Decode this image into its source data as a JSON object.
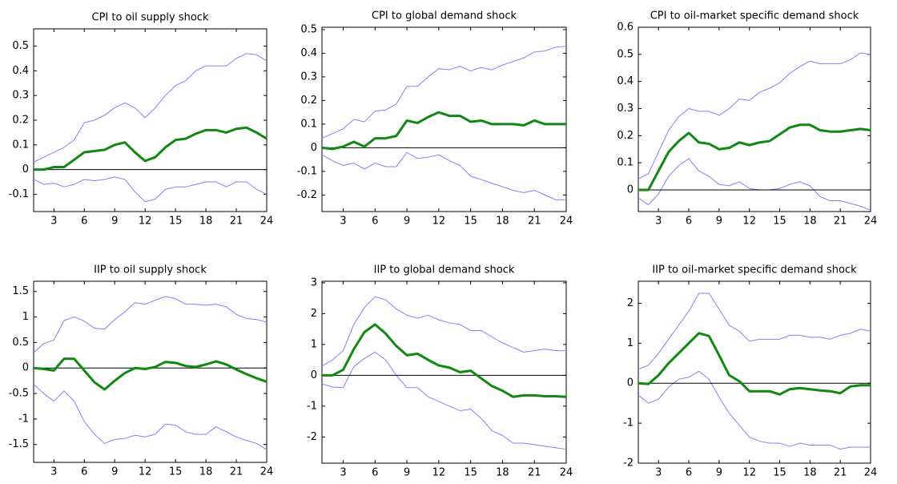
{
  "chart_data": [
    {
      "type": "line",
      "title": "CPI to oil supply shock",
      "x": [
        1,
        2,
        3,
        4,
        5,
        6,
        7,
        8,
        9,
        10,
        11,
        12,
        13,
        14,
        15,
        16,
        17,
        18,
        19,
        20,
        21,
        22,
        23,
        24
      ],
      "xlim": [
        1,
        24
      ],
      "xticks": [
        3,
        6,
        9,
        12,
        15,
        18,
        21,
        24
      ],
      "ylim": [
        -0.17,
        0.57
      ],
      "yticks": [
        -0.1,
        0,
        0.1,
        0.2,
        0.3,
        0.4,
        0.5
      ],
      "zero_line": true,
      "series": [
        {
          "color": "#8080ff",
          "values": [
            0.03,
            0.05,
            0.07,
            0.09,
            0.12,
            0.19,
            0.2,
            0.22,
            0.25,
            0.27,
            0.25,
            0.21,
            0.25,
            0.3,
            0.34,
            0.36,
            0.4,
            0.42,
            0.42,
            0.42,
            0.45,
            0.47,
            0.465,
            0.44
          ]
        },
        {
          "color": "#8080ff",
          "values": [
            -0.04,
            -0.06,
            -0.055,
            -0.07,
            -0.06,
            -0.04,
            -0.045,
            -0.04,
            -0.03,
            -0.04,
            -0.09,
            -0.13,
            -0.12,
            -0.08,
            -0.07,
            -0.07,
            -0.06,
            -0.05,
            -0.05,
            -0.07,
            -0.05,
            -0.05,
            -0.08,
            -0.1
          ]
        },
        {
          "color": "#118811",
          "values": [
            0,
            0,
            0.01,
            0.01,
            0.04,
            0.07,
            0.075,
            0.08,
            0.1,
            0.11,
            0.07,
            0.035,
            0.05,
            0.09,
            0.12,
            0.125,
            0.145,
            0.16,
            0.16,
            0.15,
            0.165,
            0.17,
            0.15,
            0.125
          ]
        }
      ]
    },
    {
      "type": "line",
      "title": "CPI to global demand shock",
      "x": [
        1,
        2,
        3,
        4,
        5,
        6,
        7,
        8,
        9,
        10,
        11,
        12,
        13,
        14,
        15,
        16,
        17,
        18,
        19,
        20,
        21,
        22,
        23,
        24
      ],
      "xlim": [
        1,
        24
      ],
      "xticks": [
        3,
        6,
        9,
        12,
        15,
        18,
        21,
        24
      ],
      "ylim": [
        -0.27,
        0.51
      ],
      "yticks": [
        -0.2,
        -0.1,
        0,
        0.1,
        0.2,
        0.3,
        0.4,
        0.5
      ],
      "zero_line": true,
      "series": [
        {
          "color": "#8080ff",
          "values": [
            0.04,
            0.06,
            0.08,
            0.12,
            0.11,
            0.155,
            0.16,
            0.185,
            0.26,
            0.26,
            0.3,
            0.335,
            0.33,
            0.345,
            0.325,
            0.34,
            0.33,
            0.35,
            0.365,
            0.38,
            0.405,
            0.41,
            0.425,
            0.43
          ]
        },
        {
          "color": "#8080ff",
          "values": [
            -0.03,
            -0.055,
            -0.075,
            -0.065,
            -0.09,
            -0.065,
            -0.08,
            -0.08,
            -0.02,
            -0.045,
            -0.04,
            -0.03,
            -0.055,
            -0.075,
            -0.12,
            -0.135,
            -0.15,
            -0.165,
            -0.18,
            -0.19,
            -0.18,
            -0.2,
            -0.22,
            -0.22
          ]
        },
        {
          "color": "#118811",
          "values": [
            0,
            -0.005,
            0.005,
            0.025,
            0.005,
            0.04,
            0.04,
            0.05,
            0.115,
            0.105,
            0.13,
            0.15,
            0.135,
            0.135,
            0.11,
            0.115,
            0.1,
            0.1,
            0.1,
            0.095,
            0.115,
            0.1,
            0.1,
            0.1
          ]
        }
      ]
    },
    {
      "type": "line",
      "title": "CPI to oil-market specific demand shock",
      "x": [
        1,
        2,
        3,
        4,
        5,
        6,
        7,
        8,
        9,
        10,
        11,
        12,
        13,
        14,
        15,
        16,
        17,
        18,
        19,
        20,
        21,
        22,
        23,
        24
      ],
      "xlim": [
        1,
        24
      ],
      "xticks": [
        3,
        6,
        9,
        12,
        15,
        18,
        21,
        24
      ],
      "ylim": [
        -0.08,
        0.6
      ],
      "yticks": [
        0,
        0.1,
        0.2,
        0.3,
        0.4,
        0.5,
        0.6
      ],
      "zero_line": true,
      "series": [
        {
          "color": "#8080ff",
          "values": [
            0.04,
            0.06,
            0.14,
            0.22,
            0.27,
            0.3,
            0.29,
            0.29,
            0.275,
            0.3,
            0.335,
            0.33,
            0.36,
            0.375,
            0.395,
            0.43,
            0.455,
            0.475,
            0.465,
            0.465,
            0.465,
            0.48,
            0.505,
            0.5
          ]
        },
        {
          "color": "#8080ff",
          "values": [
            -0.03,
            -0.055,
            -0.015,
            0.05,
            0.09,
            0.115,
            0.07,
            0.05,
            0.02,
            0.015,
            0.03,
            0.005,
            0,
            0,
            0.005,
            0.02,
            0.03,
            0.015,
            -0.025,
            -0.04,
            -0.04,
            -0.05,
            -0.06,
            -0.075
          ]
        },
        {
          "color": "#118811",
          "values": [
            0,
            0,
            0.07,
            0.14,
            0.18,
            0.21,
            0.175,
            0.17,
            0.15,
            0.155,
            0.175,
            0.165,
            0.175,
            0.18,
            0.205,
            0.23,
            0.24,
            0.24,
            0.22,
            0.215,
            0.215,
            0.22,
            0.225,
            0.22
          ]
        }
      ]
    },
    {
      "type": "line",
      "title": "IIP to oil supply shock",
      "x": [
        1,
        2,
        3,
        4,
        5,
        6,
        7,
        8,
        9,
        10,
        11,
        12,
        13,
        14,
        15,
        16,
        17,
        18,
        19,
        20,
        21,
        22,
        23,
        24
      ],
      "xlim": [
        1,
        24
      ],
      "xticks": [
        3,
        6,
        9,
        12,
        15,
        18,
        21,
        24
      ],
      "ylim": [
        -1.85,
        1.7
      ],
      "yticks": [
        -1.5,
        -1,
        -0.5,
        0,
        0.5,
        1,
        1.5
      ],
      "zero_line": true,
      "series": [
        {
          "color": "#8080ff",
          "values": [
            0.3,
            0.48,
            0.55,
            0.93,
            1.0,
            0.92,
            0.78,
            0.76,
            0.95,
            1.1,
            1.28,
            1.25,
            1.33,
            1.4,
            1.36,
            1.25,
            1.25,
            1.23,
            1.25,
            1.2,
            1.05,
            0.97,
            0.95,
            0.9
          ]
        },
        {
          "color": "#8080ff",
          "values": [
            -0.32,
            -0.5,
            -0.65,
            -0.45,
            -0.65,
            -1.05,
            -1.3,
            -1.48,
            -1.4,
            -1.38,
            -1.32,
            -1.35,
            -1.3,
            -1.1,
            -1.12,
            -1.25,
            -1.3,
            -1.3,
            -1.15,
            -1.25,
            -1.35,
            -1.42,
            -1.48,
            -1.6
          ]
        },
        {
          "color": "#118811",
          "values": [
            0,
            -0.02,
            -0.05,
            0.18,
            0.18,
            -0.05,
            -0.28,
            -0.42,
            -0.25,
            -0.1,
            0,
            -0.02,
            0.02,
            0.12,
            0.1,
            0.04,
            0.02,
            0.07,
            0.13,
            0.07,
            -0.03,
            -0.12,
            -0.2,
            -0.27
          ]
        }
      ]
    },
    {
      "type": "line",
      "title": "IIP to global demand shock",
      "x": [
        1,
        2,
        3,
        4,
        5,
        6,
        7,
        8,
        9,
        10,
        11,
        12,
        13,
        14,
        15,
        16,
        17,
        18,
        19,
        20,
        21,
        22,
        23,
        24
      ],
      "xlim": [
        1,
        24
      ],
      "xticks": [
        3,
        6,
        9,
        12,
        15,
        18,
        21,
        24
      ],
      "ylim": [
        -2.85,
        3.05
      ],
      "yticks": [
        -2,
        -1,
        0,
        1,
        2,
        3
      ],
      "zero_line": true,
      "series": [
        {
          "color": "#8080ff",
          "values": [
            0.3,
            0.5,
            0.8,
            1.65,
            2.2,
            2.55,
            2.45,
            2.15,
            1.95,
            1.85,
            1.95,
            1.8,
            1.7,
            1.65,
            1.45,
            1.45,
            1.25,
            1.05,
            0.9,
            0.75,
            0.8,
            0.85,
            0.8,
            0.8
          ]
        },
        {
          "color": "#8080ff",
          "values": [
            -0.28,
            -0.38,
            -0.4,
            0.28,
            0.55,
            0.75,
            0.5,
            0.0,
            -0.4,
            -0.4,
            -0.7,
            -0.85,
            -1.0,
            -1.15,
            -1.1,
            -1.4,
            -1.8,
            -1.95,
            -2.2,
            -2.2,
            -2.25,
            -2.3,
            -2.35,
            -2.4
          ]
        },
        {
          "color": "#118811",
          "values": [
            0,
            0,
            0.18,
            0.85,
            1.4,
            1.65,
            1.35,
            0.95,
            0.65,
            0.7,
            0.5,
            0.32,
            0.25,
            0.1,
            0.15,
            -0.1,
            -0.35,
            -0.5,
            -0.7,
            -0.65,
            -0.65,
            -0.68,
            -0.68,
            -0.7
          ]
        }
      ]
    },
    {
      "type": "line",
      "title": "IIP to oil-market specific demand shock",
      "x": [
        1,
        2,
        3,
        4,
        5,
        6,
        7,
        8,
        9,
        10,
        11,
        12,
        13,
        14,
        15,
        16,
        17,
        18,
        19,
        20,
        21,
        22,
        23,
        24
      ],
      "xlim": [
        1,
        24
      ],
      "xticks": [
        3,
        6,
        9,
        12,
        15,
        18,
        21,
        24
      ],
      "ylim": [
        -2.0,
        2.55
      ],
      "yticks": [
        -2,
        -1,
        0,
        1,
        2
      ],
      "zero_line": true,
      "series": [
        {
          "color": "#8080ff",
          "values": [
            0.35,
            0.45,
            0.75,
            1.1,
            1.45,
            1.8,
            2.25,
            2.25,
            1.85,
            1.45,
            1.3,
            1.05,
            1.1,
            1.1,
            1.1,
            1.2,
            1.2,
            1.15,
            1.15,
            1.1,
            1.2,
            1.25,
            1.35,
            1.3
          ]
        },
        {
          "color": "#8080ff",
          "values": [
            -0.3,
            -0.5,
            -0.4,
            -0.1,
            0.1,
            0.15,
            0.3,
            0.1,
            -0.35,
            -0.75,
            -1.05,
            -1.35,
            -1.45,
            -1.5,
            -1.5,
            -1.58,
            -1.5,
            -1.55,
            -1.55,
            -1.55,
            -1.65,
            -1.6,
            -1.6,
            -1.6
          ]
        },
        {
          "color": "#118811",
          "values": [
            0,
            -0.02,
            0.2,
            0.5,
            0.75,
            1.0,
            1.25,
            1.18,
            0.7,
            0.2,
            0.05,
            -0.2,
            -0.2,
            -0.2,
            -0.28,
            -0.15,
            -0.12,
            -0.15,
            -0.18,
            -0.2,
            -0.25,
            -0.08,
            -0.05,
            -0.05
          ]
        }
      ]
    }
  ]
}
